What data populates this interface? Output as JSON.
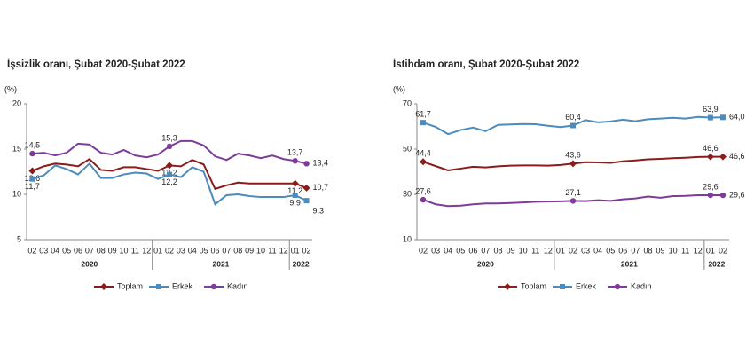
{
  "chart_data": [
    {
      "type": "line",
      "title": "İşsizlik oranı, Şubat 2020-Şubat 2022",
      "y_label": "(%)",
      "categories": [
        "02",
        "03",
        "04",
        "05",
        "06",
        "07",
        "08",
        "09",
        "10",
        "11",
        "12",
        "01",
        "02",
        "03",
        "04",
        "05",
        "06",
        "07",
        "08",
        "09",
        "10",
        "11",
        "12",
        "01",
        "02"
      ],
      "groups": [
        "2020",
        "2021",
        "2022"
      ],
      "ylim": [
        5,
        20
      ],
      "yticks": [
        5,
        10,
        15,
        20
      ],
      "grid": false,
      "series": [
        {
          "name": "Toplam",
          "color": "#8b1c1c",
          "marker": "diamond",
          "values": [
            12.6,
            13.1,
            13.4,
            13.3,
            13.1,
            13.9,
            12.7,
            12.6,
            13.0,
            13.0,
            12.8,
            12.6,
            13.2,
            13.1,
            13.8,
            13.3,
            10.6,
            11.0,
            11.3,
            11.2,
            11.2,
            11.2,
            11.2,
            11.2,
            10.7
          ],
          "value_labels": [
            "12,6",
            null,
            null,
            null,
            null,
            null,
            null,
            null,
            null,
            null,
            null,
            null,
            "13,2",
            null,
            null,
            null,
            null,
            null,
            null,
            null,
            null,
            null,
            null,
            "11,2",
            "10,7"
          ]
        },
        {
          "name": "Erkek",
          "color": "#4b8bbe",
          "marker": "square",
          "values": [
            11.7,
            12.1,
            13.2,
            12.8,
            12.2,
            13.4,
            11.8,
            11.8,
            12.2,
            12.4,
            12.3,
            11.7,
            12.2,
            11.9,
            13.0,
            12.5,
            8.9,
            9.9,
            10.0,
            9.8,
            9.7,
            9.7,
            9.7,
            9.9,
            9.3
          ],
          "value_labels": [
            "11,7",
            null,
            null,
            null,
            null,
            null,
            null,
            null,
            null,
            null,
            null,
            null,
            "12,2",
            null,
            null,
            null,
            null,
            null,
            null,
            null,
            null,
            null,
            null,
            "9,9",
            "9,3"
          ]
        },
        {
          "name": "Kadın",
          "color": "#7d3c98",
          "marker": "circle",
          "values": [
            14.5,
            14.6,
            14.3,
            14.6,
            15.6,
            15.5,
            14.6,
            14.4,
            14.9,
            14.3,
            14.1,
            14.4,
            15.3,
            15.9,
            15.9,
            15.4,
            14.2,
            13.8,
            14.5,
            14.3,
            14.0,
            14.3,
            13.9,
            13.7,
            13.4
          ],
          "value_labels": [
            "14,5",
            null,
            null,
            null,
            null,
            null,
            null,
            null,
            null,
            null,
            null,
            null,
            "15,3",
            null,
            null,
            null,
            null,
            null,
            null,
            null,
            null,
            null,
            null,
            "13,7",
            "13,4"
          ]
        }
      ]
    },
    {
      "type": "line",
      "title": "İstihdam oranı, Şubat 2020-Şubat 2022",
      "y_label": "(%)",
      "categories": [
        "02",
        "03",
        "04",
        "05",
        "06",
        "07",
        "08",
        "09",
        "10",
        "11",
        "12",
        "01",
        "02",
        "03",
        "04",
        "05",
        "06",
        "07",
        "08",
        "09",
        "10",
        "11",
        "12",
        "01",
        "02"
      ],
      "groups": [
        "2020",
        "2021",
        "2022"
      ],
      "ylim": [
        10,
        70
      ],
      "yticks": [
        10,
        30,
        50,
        70
      ],
      "grid": false,
      "series": [
        {
          "name": "Toplam",
          "color": "#8b1c1c",
          "marker": "diamond",
          "values": [
            44.4,
            42.5,
            40.6,
            41.4,
            42.2,
            41.9,
            42.4,
            42.7,
            42.8,
            42.8,
            42.7,
            43.0,
            43.6,
            44.2,
            44.1,
            43.9,
            44.6,
            45.0,
            45.5,
            45.7,
            46.0,
            46.2,
            46.5,
            46.6,
            46.6
          ],
          "value_labels": [
            "44,4",
            null,
            null,
            null,
            null,
            null,
            null,
            null,
            null,
            null,
            null,
            null,
            "43,6",
            null,
            null,
            null,
            null,
            null,
            null,
            null,
            null,
            null,
            null,
            "46,6",
            "46,6"
          ]
        },
        {
          "name": "Erkek",
          "color": "#4b8bbe",
          "marker": "square",
          "values": [
            61.7,
            59.8,
            56.6,
            58.4,
            59.5,
            57.9,
            60.7,
            60.9,
            61.1,
            61.0,
            60.3,
            59.7,
            60.4,
            62.8,
            61.8,
            62.2,
            63.0,
            62.3,
            63.2,
            63.5,
            63.8,
            63.5,
            64.2,
            63.9,
            64.0
          ],
          "value_labels": [
            "61,7",
            null,
            null,
            null,
            null,
            null,
            null,
            null,
            null,
            null,
            null,
            null,
            "60,4",
            null,
            null,
            null,
            null,
            null,
            null,
            null,
            null,
            null,
            null,
            "63,9",
            "64,0"
          ]
        },
        {
          "name": "Kadın",
          "color": "#7d3c98",
          "marker": "circle",
          "values": [
            27.6,
            25.6,
            24.8,
            25.0,
            25.6,
            26.0,
            26.0,
            26.2,
            26.4,
            26.7,
            26.8,
            26.9,
            27.1,
            27.0,
            27.4,
            27.1,
            27.8,
            28.2,
            29.0,
            28.5,
            29.2,
            29.3,
            29.6,
            29.6,
            29.6
          ],
          "value_labels": [
            "27,6",
            null,
            null,
            null,
            null,
            null,
            null,
            null,
            null,
            null,
            null,
            null,
            "27,1",
            null,
            null,
            null,
            null,
            null,
            null,
            null,
            null,
            null,
            null,
            "29,6",
            "29,6"
          ]
        }
      ]
    }
  ]
}
